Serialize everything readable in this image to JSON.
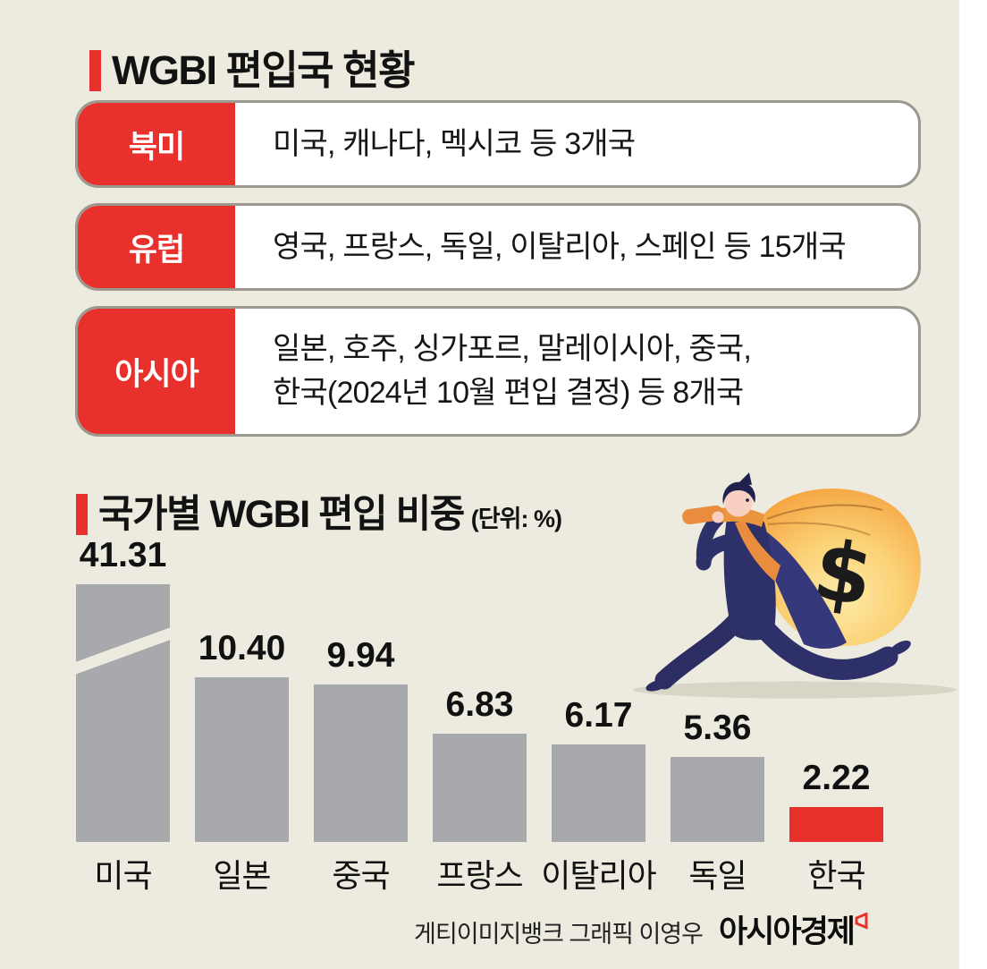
{
  "page": {
    "background": "#edebdf",
    "accent_red": "#e8312d",
    "bar_gray": "#a7a9ac"
  },
  "section1": {
    "title": "WGBI 편입국 현황"
  },
  "regions": [
    {
      "label": "북미",
      "lines": [
        "미국, 캐나다, 멕시코 등 3개국"
      ]
    },
    {
      "label": "유럽",
      "lines": [
        "영국, 프랑스, 독일, 이탈리아, 스페인 등 15개국"
      ]
    },
    {
      "label": "아시아",
      "lines": [
        "일본, 호주, 싱가포르, 말레이시아, 중국,",
        "한국(2024년 10월 편입 결정) 등 8개국"
      ]
    }
  ],
  "section2": {
    "title": "국가별 WGBI 편입 비중",
    "unit": "(단위: %)"
  },
  "chart_data": {
    "type": "bar",
    "title": "국가별 WGBI 편입 비중",
    "unit_label": "(단위: %)",
    "categories": [
      "미국",
      "일본",
      "중국",
      "프랑스",
      "이탈리아",
      "독일",
      "한국"
    ],
    "values": [
      41.31,
      10.4,
      9.94,
      6.83,
      6.17,
      5.36,
      2.22
    ],
    "value_labels": [
      "41.31",
      "10.40",
      "9.94",
      "6.83",
      "6.17",
      "5.36",
      "2.22"
    ],
    "colors": {
      "default": "#a7a9ac",
      "highlight": "#e8312d"
    },
    "highlight_index": 6,
    "axis_break_index": 0,
    "grid": false,
    "legend": false,
    "value_labels_position": "above-bars"
  },
  "illustration": {
    "name": "businessman-running-with-money-bag",
    "dollar_sign": "$"
  },
  "credits": {
    "source": "게티이미지뱅크  그래픽 이영우",
    "publisher": "아시아경제"
  }
}
